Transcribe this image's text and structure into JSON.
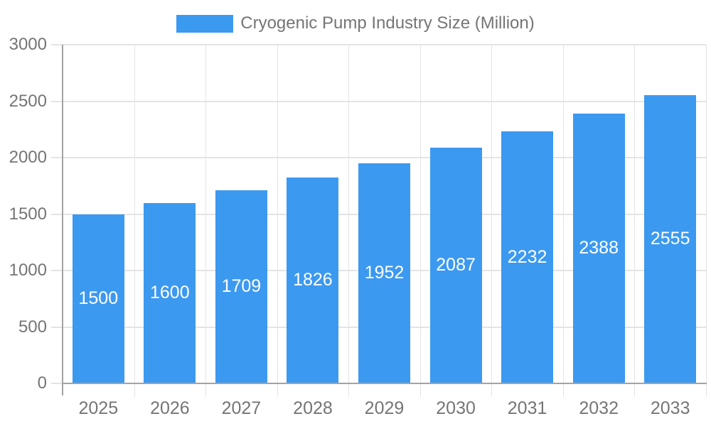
{
  "legend": {
    "label": "Cryogenic Pump Industry Size (Million)"
  },
  "chart_data": {
    "type": "bar",
    "title": "Cryogenic Pump Industry Size (Million)",
    "categories": [
      "2025",
      "2026",
      "2027",
      "2028",
      "2029",
      "2030",
      "2031",
      "2032",
      "2033"
    ],
    "values": [
      1500,
      1600,
      1709,
      1826,
      1952,
      2087,
      2232,
      2388,
      2555
    ],
    "xlabel": "",
    "ylabel": "",
    "ylim": [
      0,
      3000
    ],
    "yticks": [
      0,
      500,
      1000,
      1500,
      2000,
      2500,
      3000
    ],
    "grid": true,
    "legend_position": "top",
    "colors": {
      "bar": "#3C99F0",
      "bar_label": "#FFFFFF",
      "axis_text": "#757575",
      "gridline": "#E4E4E4",
      "axis_line": "#A3A3A3",
      "background": "#FFFFFF"
    }
  }
}
